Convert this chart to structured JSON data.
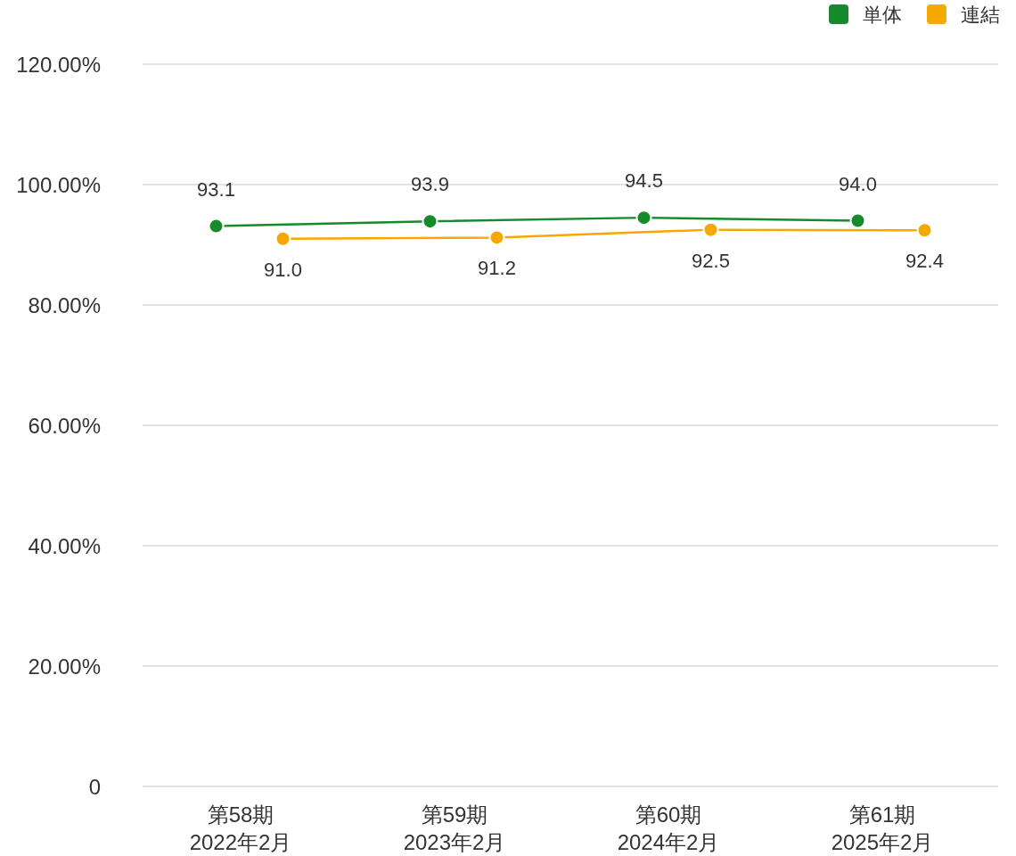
{
  "chart_data": {
    "type": "line",
    "categories": [
      "第58期\n2022年2月",
      "第59期\n2023年2月",
      "第60期\n2024年2月",
      "第61期\n2025年2月"
    ],
    "series": [
      {
        "name": "単体",
        "color": "#178a2c",
        "values": [
          93.1,
          93.9,
          94.5,
          94.0
        ],
        "value_labels": [
          "93.1",
          "93.9",
          "94.5",
          "94.0"
        ]
      },
      {
        "name": "連結",
        "color": "#f5a800",
        "values": [
          91.0,
          91.2,
          92.5,
          92.4
        ],
        "value_labels": [
          "91.0",
          "91.2",
          "92.5",
          "92.4"
        ]
      }
    ],
    "ylim": [
      0,
      120
    ],
    "yticks": [
      {
        "value": 0,
        "label": "0"
      },
      {
        "value": 20,
        "label": "20.00%"
      },
      {
        "value": 40,
        "label": "40.00%"
      },
      {
        "value": 60,
        "label": "60.00%"
      },
      {
        "value": 80,
        "label": "80.00%"
      },
      {
        "value": 100,
        "label": "100.00%"
      },
      {
        "value": 120,
        "label": "120.00%"
      }
    ],
    "grid": "y",
    "legend": "top right",
    "marker": "circle"
  }
}
